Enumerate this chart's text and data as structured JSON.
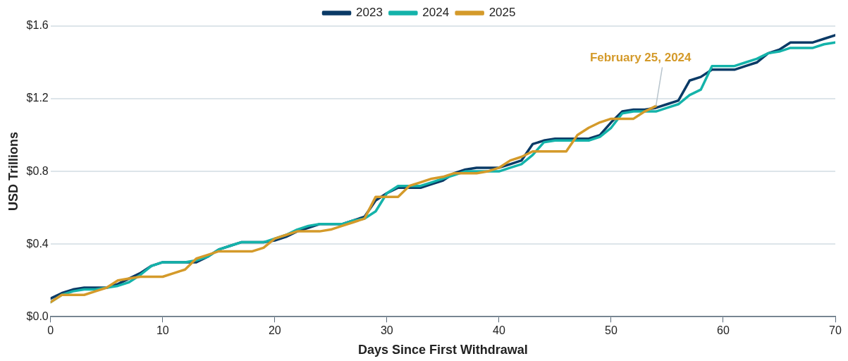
{
  "chart_data": {
    "type": "line",
    "xlabel": "Days Since First Withdrawal",
    "ylabel": "USD Trillions",
    "x": [
      0,
      1,
      2,
      3,
      4,
      5,
      6,
      7,
      8,
      9,
      10,
      11,
      12,
      13,
      14,
      15,
      16,
      17,
      18,
      19,
      20,
      21,
      22,
      23,
      24,
      25,
      26,
      27,
      28,
      29,
      30,
      31,
      32,
      33,
      34,
      35,
      36,
      37,
      38,
      39,
      40,
      41,
      42,
      43,
      44,
      45,
      46,
      47,
      48,
      49,
      50,
      51,
      52,
      53,
      54,
      55,
      56,
      57,
      58,
      59,
      60,
      61,
      62,
      63,
      64,
      65,
      66,
      67,
      68,
      69,
      70
    ],
    "series": [
      {
        "name": "2023",
        "color": "#0a3a66",
        "values": [
          0.1,
          0.13,
          0.15,
          0.16,
          0.16,
          0.16,
          0.18,
          0.21,
          0.24,
          0.28,
          0.3,
          0.3,
          0.3,
          0.3,
          0.33,
          0.37,
          0.39,
          0.41,
          0.41,
          0.41,
          0.42,
          0.44,
          0.47,
          0.49,
          0.51,
          0.51,
          0.51,
          0.53,
          0.55,
          0.64,
          0.68,
          0.71,
          0.71,
          0.71,
          0.73,
          0.75,
          0.79,
          0.81,
          0.82,
          0.82,
          0.82,
          0.84,
          0.86,
          0.95,
          0.97,
          0.98,
          0.98,
          0.98,
          0.98,
          1.0,
          1.07,
          1.13,
          1.14,
          1.14,
          1.15,
          1.17,
          1.19,
          1.3,
          1.32,
          1.36,
          1.36,
          1.36,
          1.38,
          1.4,
          1.45,
          1.47,
          1.51,
          1.51,
          1.51,
          1.53,
          1.55
        ]
      },
      {
        "name": "2024",
        "color": "#14b3aa",
        "values": [
          0.08,
          0.12,
          0.14,
          0.15,
          0.15,
          0.16,
          0.17,
          0.19,
          0.23,
          0.28,
          0.3,
          0.3,
          0.3,
          0.31,
          0.33,
          0.37,
          0.39,
          0.41,
          0.41,
          0.41,
          0.43,
          0.45,
          0.48,
          0.5,
          0.51,
          0.51,
          0.51,
          0.53,
          0.54,
          0.58,
          0.68,
          0.72,
          0.72,
          0.72,
          0.74,
          0.76,
          0.78,
          0.8,
          0.8,
          0.8,
          0.8,
          0.82,
          0.84,
          0.89,
          0.96,
          0.97,
          0.97,
          0.97,
          0.97,
          0.99,
          1.04,
          1.12,
          1.13,
          1.13,
          1.13,
          1.15,
          1.17,
          1.22,
          1.25,
          1.38,
          1.38,
          1.38,
          1.4,
          1.42,
          1.45,
          1.46,
          1.48,
          1.48,
          1.48,
          1.5,
          1.51
        ]
      },
      {
        "name": "2025",
        "color": "#d49a2a",
        "values": [
          0.08,
          0.12,
          0.12,
          0.12,
          0.14,
          0.16,
          0.2,
          0.21,
          0.22,
          0.22,
          0.22,
          0.24,
          0.26,
          0.32,
          0.34,
          0.36,
          0.36,
          0.36,
          0.36,
          0.38,
          0.43,
          0.45,
          0.47,
          0.47,
          0.47,
          0.48,
          0.5,
          0.52,
          0.54,
          0.66,
          0.66,
          0.66,
          0.72,
          0.74,
          0.76,
          0.77,
          0.79,
          0.79,
          0.79,
          0.8,
          0.82,
          0.86,
          0.88,
          0.91,
          0.91,
          0.91,
          0.91,
          1.0,
          1.04,
          1.07,
          1.09,
          1.09,
          1.09,
          1.13,
          1.16,
          null,
          null,
          null,
          null,
          null,
          null,
          null,
          null,
          null,
          null,
          null,
          null,
          null,
          null,
          null,
          null
        ]
      }
    ],
    "xlim": [
      0,
      70
    ],
    "xticks": [
      0,
      10,
      20,
      30,
      40,
      50,
      60,
      70
    ],
    "ylim": [
      0,
      1.6
    ],
    "yticks": [
      {
        "value": 0,
        "label": "$0.0"
      },
      {
        "value": 0.4,
        "label": "$0.4"
      },
      {
        "value": 0.8,
        "label": "$0.8"
      },
      {
        "value": 1.2,
        "label": "$1.2"
      },
      {
        "value": 1.6,
        "label": "$1.6"
      }
    ],
    "grid": "y",
    "legend": "top",
    "marker": "none",
    "line_style": "solid",
    "annotations": [
      {
        "text": "February 25, 2024",
        "x": 54,
        "y": 1.16
      }
    ]
  }
}
